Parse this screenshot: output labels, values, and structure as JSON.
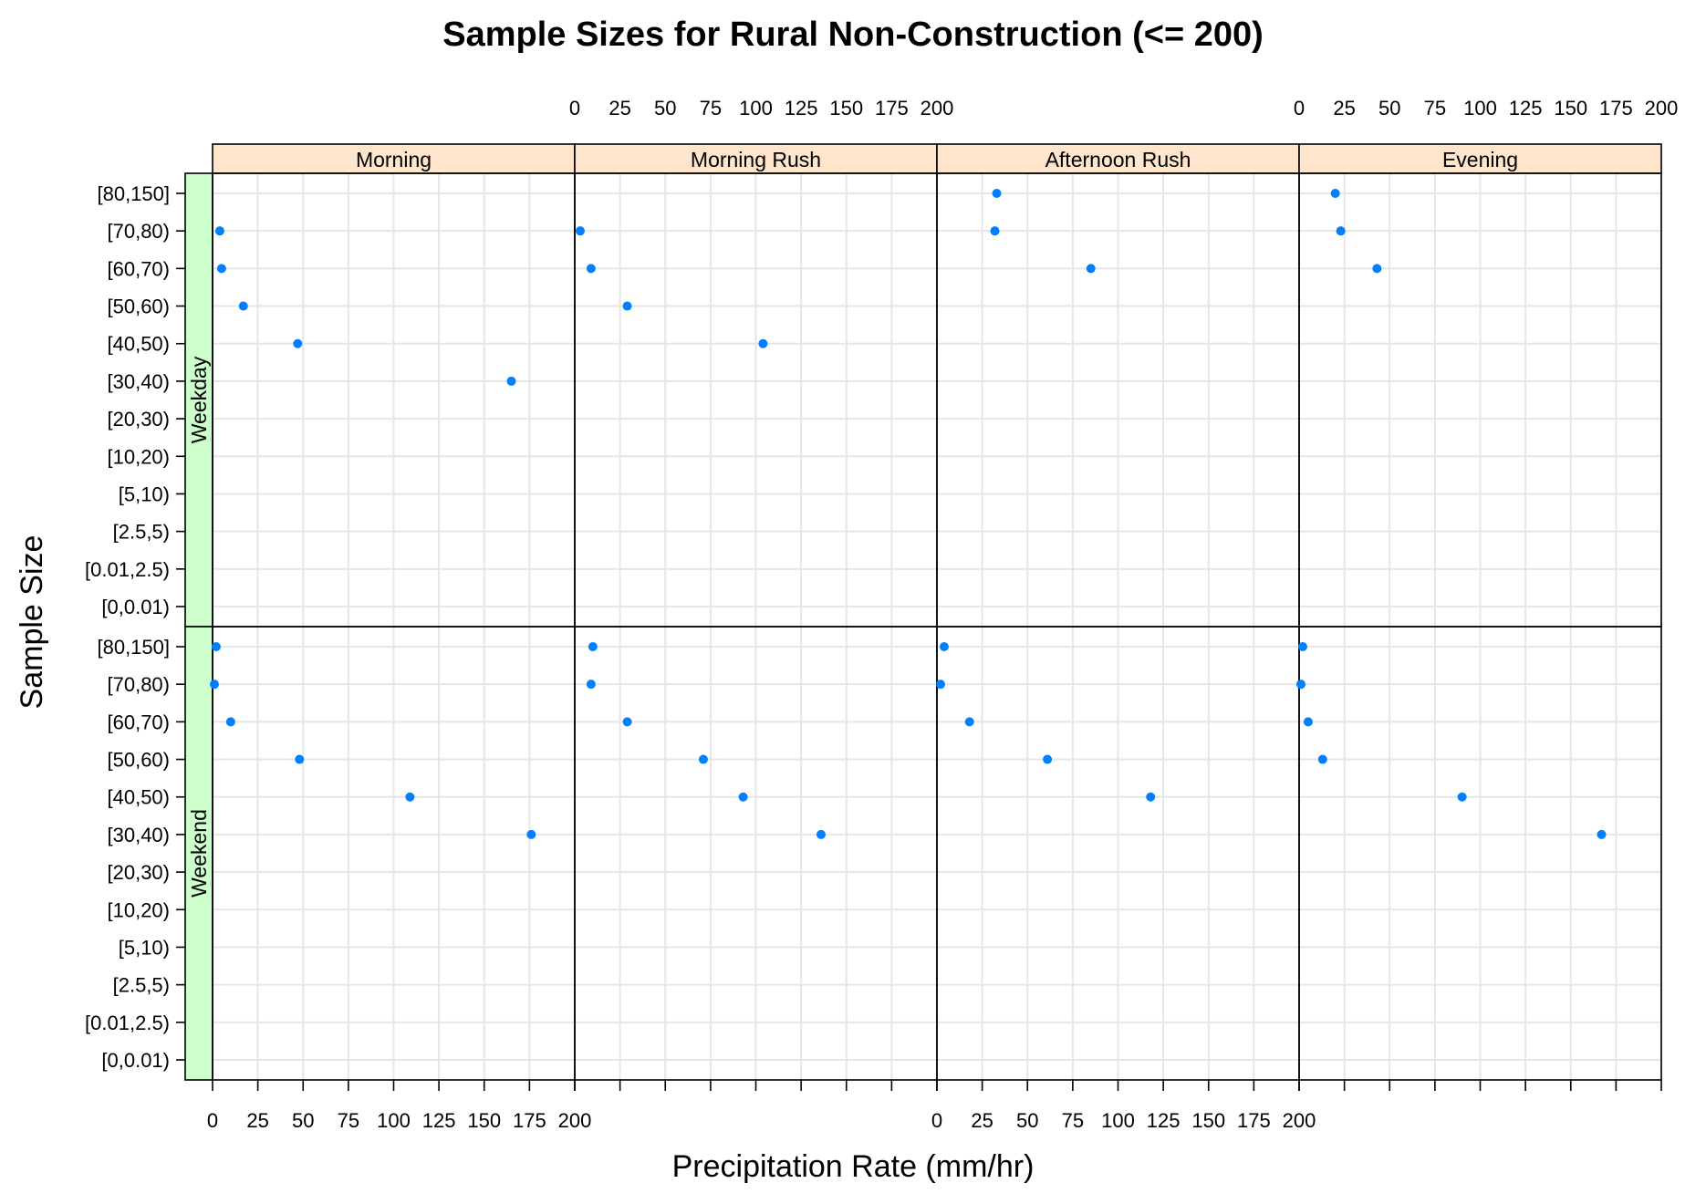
{
  "chart_data": {
    "type": "scatter",
    "title": "Sample Sizes for Rural Non-Construction (<= 200)",
    "xlabel": "Precipitation Rate (mm/hr)",
    "ylabel": "Sample Size",
    "xlim": [
      0,
      200
    ],
    "x_ticks": [
      "0",
      "25",
      "50",
      "75",
      "100",
      "125",
      "150",
      "175",
      "200"
    ],
    "x_tick_values": [
      0,
      25,
      50,
      75,
      100,
      125,
      150,
      175,
      200
    ],
    "categories": [
      "[0,0.01)",
      "[0.01,2.5)",
      "[2.5,5)",
      "[5,10)",
      "[10,20)",
      "[20,30)",
      "[30,40)",
      "[40,50)",
      "[50,60)",
      "[60,70)",
      "[70,80)",
      "[80,150]"
    ],
    "columns": [
      "Morning",
      "Morning Rush",
      "Afternoon Rush",
      "Evening"
    ],
    "rows": [
      "Weekday",
      "Weekend"
    ],
    "grid": true,
    "point_color": "#0080ff",
    "strip_color_columns": "#ffe5cc",
    "strip_color_rows": "#ccffcc",
    "panels": [
      {
        "row": "Weekday",
        "column": "Morning",
        "points": [
          {
            "x": 4,
            "y": "[70,80)"
          },
          {
            "x": 5,
            "y": "[60,70)"
          },
          {
            "x": 17,
            "y": "[50,60)"
          },
          {
            "x": 47,
            "y": "[40,50)"
          },
          {
            "x": 165,
            "y": "[30,40)"
          }
        ]
      },
      {
        "row": "Weekday",
        "column": "Morning Rush",
        "points": [
          {
            "x": 3,
            "y": "[70,80)"
          },
          {
            "x": 9,
            "y": "[60,70)"
          },
          {
            "x": 29,
            "y": "[50,60)"
          },
          {
            "x": 104,
            "y": "[40,50)"
          }
        ]
      },
      {
        "row": "Weekday",
        "column": "Afternoon Rush",
        "points": [
          {
            "x": 33,
            "y": "[80,150]"
          },
          {
            "x": 32,
            "y": "[70,80)"
          },
          {
            "x": 85,
            "y": "[60,70)"
          }
        ]
      },
      {
        "row": "Weekday",
        "column": "Evening",
        "points": [
          {
            "x": 20,
            "y": "[80,150]"
          },
          {
            "x": 23,
            "y": "[70,80)"
          },
          {
            "x": 43,
            "y": "[60,70)"
          }
        ]
      },
      {
        "row": "Weekend",
        "column": "Morning",
        "points": [
          {
            "x": 2,
            "y": "[80,150]"
          },
          {
            "x": 1,
            "y": "[70,80)"
          },
          {
            "x": 10,
            "y": "[60,70)"
          },
          {
            "x": 48,
            "y": "[50,60)"
          },
          {
            "x": 109,
            "y": "[40,50)"
          },
          {
            "x": 176,
            "y": "[30,40)"
          }
        ]
      },
      {
        "row": "Weekend",
        "column": "Morning Rush",
        "points": [
          {
            "x": 10,
            "y": "[80,150]"
          },
          {
            "x": 9,
            "y": "[70,80)"
          },
          {
            "x": 29,
            "y": "[60,70)"
          },
          {
            "x": 71,
            "y": "[50,60)"
          },
          {
            "x": 93,
            "y": "[40,50)"
          },
          {
            "x": 136,
            "y": "[30,40)"
          }
        ]
      },
      {
        "row": "Weekend",
        "column": "Afternoon Rush",
        "points": [
          {
            "x": 4,
            "y": "[80,150]"
          },
          {
            "x": 2,
            "y": "[70,80)"
          },
          {
            "x": 18,
            "y": "[60,70)"
          },
          {
            "x": 61,
            "y": "[50,60)"
          },
          {
            "x": 118,
            "y": "[40,50)"
          }
        ]
      },
      {
        "row": "Weekend",
        "column": "Evening",
        "points": [
          {
            "x": 2,
            "y": "[80,150]"
          },
          {
            "x": 1,
            "y": "[70,80)"
          },
          {
            "x": 5,
            "y": "[60,70)"
          },
          {
            "x": 13,
            "y": "[50,60)"
          },
          {
            "x": 90,
            "y": "[40,50)"
          },
          {
            "x": 167,
            "y": "[30,40)"
          }
        ]
      }
    ]
  }
}
